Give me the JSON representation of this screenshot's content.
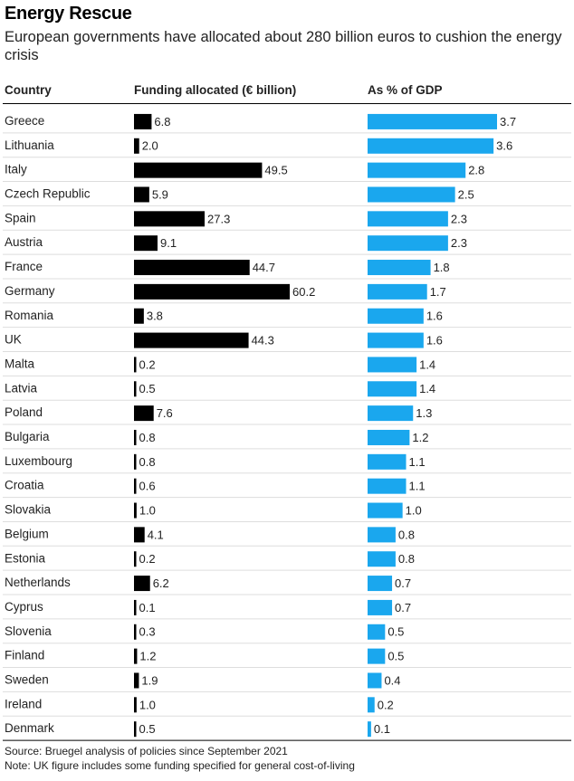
{
  "title": "Energy Rescue",
  "subtitle": "European governments have allocated about 280 billion euros to cushion the energy crisis",
  "headers": {
    "country": "Country",
    "funding": "Funding allocated (€ billion)",
    "gdp": "As % of GDP"
  },
  "chart_data": {
    "type": "bar",
    "orientation": "horizontal",
    "categories": [
      "Greece",
      "Lithuania",
      "Italy",
      "Czech Republic",
      "Spain",
      "Austria",
      "France",
      "Germany",
      "Romania",
      "UK",
      "Malta",
      "Latvia",
      "Poland",
      "Bulgaria",
      "Luxembourg",
      "Croatia",
      "Slovakia",
      "Belgium",
      "Estonia",
      "Netherlands",
      "Cyprus",
      "Slovenia",
      "Finland",
      "Sweden",
      "Ireland",
      "Denmark"
    ],
    "series": [
      {
        "name": "Funding allocated (€ billion)",
        "color": "#000000",
        "values": [
          6.8,
          2.0,
          49.5,
          5.9,
          27.3,
          9.1,
          44.7,
          60.2,
          3.8,
          44.3,
          0.2,
          0.5,
          7.6,
          0.8,
          0.8,
          0.6,
          1.0,
          4.1,
          0.2,
          6.2,
          0.1,
          0.3,
          1.2,
          1.9,
          1.0,
          0.5
        ],
        "labels": [
          "6.8",
          "2.0",
          "49.5",
          "5.9",
          "27.3",
          "9.1",
          "44.7",
          "60.2",
          "3.8",
          "44.3",
          "0.2",
          "0.5",
          "7.6",
          "0.8",
          "0.8",
          "0.6",
          "1.0",
          "4.1",
          "0.2",
          "6.2",
          "0.1",
          "0.3",
          "1.2",
          "1.9",
          "1.0",
          "0.5"
        ]
      },
      {
        "name": "As % of GDP",
        "color": "#1aa7ee",
        "values": [
          3.7,
          3.6,
          2.8,
          2.5,
          2.3,
          2.3,
          1.8,
          1.7,
          1.6,
          1.6,
          1.4,
          1.4,
          1.3,
          1.2,
          1.1,
          1.1,
          1.0,
          0.8,
          0.8,
          0.7,
          0.7,
          0.5,
          0.5,
          0.4,
          0.2,
          0.1
        ],
        "labels": [
          "3.7",
          "3.6",
          "2.8",
          "2.5",
          "2.3",
          "2.3",
          "1.8",
          "1.7",
          "1.6",
          "1.6",
          "1.4",
          "1.4",
          "1.3",
          "1.2",
          "1.1",
          "1.1",
          "1.0",
          "0.8",
          "0.8",
          "0.7",
          "0.7",
          "0.5",
          "0.5",
          "0.4",
          "0.2",
          "0.1"
        ]
      }
    ],
    "grid": false,
    "legend": "none"
  },
  "source": "Source: Bruegel analysis of policies since September 2021",
  "note": "Note: UK figure includes some funding specified for general cost-of-living"
}
